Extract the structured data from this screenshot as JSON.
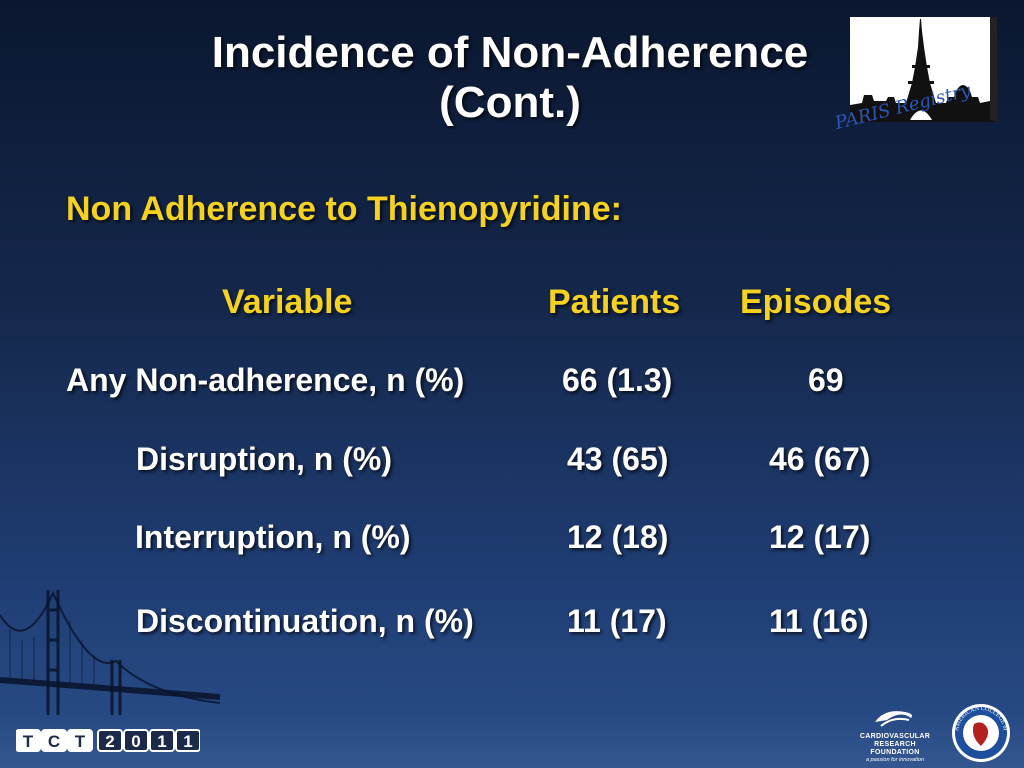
{
  "title": {
    "line1": "Incidence of Non-Adherence",
    "line2": "(Cont.)"
  },
  "logo": {
    "caption": "PARIS Registry"
  },
  "subtitle": "Non Adherence to Thienopyridine:",
  "table": {
    "headers": [
      "Variable",
      "Patients",
      "Episodes"
    ],
    "rows": [
      {
        "label": "Any Non-adherence, n (%)",
        "patients": "66 (1.3)",
        "episodes": "69"
      },
      {
        "label": "Disruption, n (%)",
        "patients": "43 (65)",
        "episodes": "46 (67)"
      },
      {
        "label": "Interruption, n (%)",
        "patients": "12 (18)",
        "episodes": "12 (17)"
      },
      {
        "label": "Discontinuation, n (%)",
        "patients": "11 (17)",
        "episodes": "11 (16)"
      }
    ]
  },
  "footer": {
    "tct_letters": [
      "T",
      "C",
      "T",
      "2",
      "0",
      "1",
      "1"
    ],
    "crf_name_line1": "CARDIOVASCULAR",
    "crf_name_line2": "RESEARCH FOUNDATION",
    "crf_tagline": "a passion for innovation",
    "acc_seal_text": "AMERICAN COLLEGE of CARDIOLOGY"
  },
  "colors": {
    "accent_yellow": "#f5d21f",
    "text_white": "#ffffff",
    "background_dark": "#0b1730",
    "background_light": "#2a4e8a",
    "paris_blue": "#2a57b8"
  }
}
